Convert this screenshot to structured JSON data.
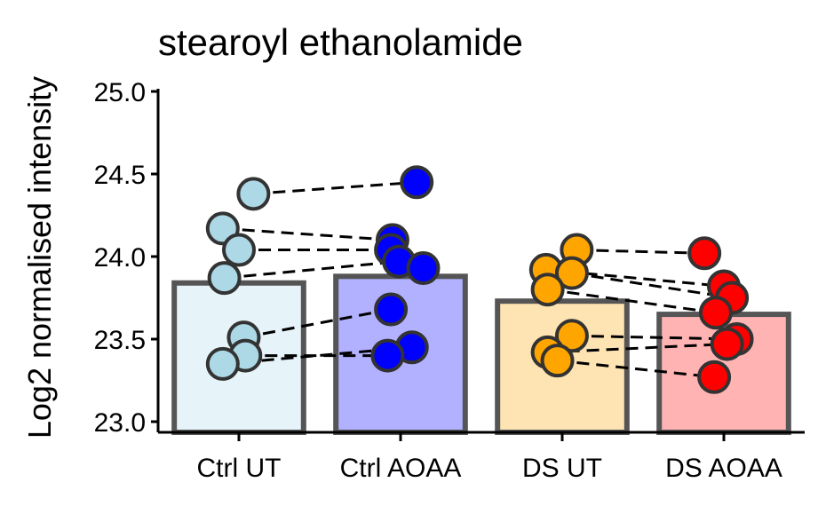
{
  "chart_data": {
    "type": "bar",
    "title": "stearoyl ethanolamide",
    "xlabel": "",
    "ylabel": "Log2 normalised intensity",
    "ylim": [
      23.0,
      25.0
    ],
    "yticks": [
      "23.0",
      "23.5",
      "24.0",
      "24.5",
      "25.0"
    ],
    "grid": false,
    "categories": [
      "Ctrl UT",
      "Ctrl AOAA",
      "DS UT",
      "DS AOAA"
    ],
    "values": [
      23.84,
      23.88,
      23.73,
      23.65
    ],
    "bar_colors": [
      "#e6f3f9",
      "#b1b1ff",
      "#fee4b3",
      "#ffb3b3"
    ],
    "point_colors": [
      "#add8e6",
      "#0000ff",
      "#ffa500",
      "#ff0000"
    ],
    "points": [
      [
        24.38,
        24.17,
        24.04,
        23.87,
        23.51,
        23.4,
        23.35
      ],
      [
        24.45,
        24.1,
        24.04,
        23.97,
        23.93,
        23.68,
        23.45,
        23.4
      ],
      [
        24.04,
        23.92,
        23.9,
        23.8,
        23.52,
        23.42,
        23.37
      ],
      [
        24.02,
        23.82,
        23.75,
        23.66,
        23.5,
        23.47,
        23.27
      ]
    ],
    "point_offsets": [
      [
        0.09,
        -0.1,
        0.0,
        -0.09,
        0.03,
        0.04,
        -0.1
      ],
      [
        0.1,
        -0.05,
        -0.06,
        -0.01,
        0.14,
        -0.06,
        0.07,
        -0.08
      ],
      [
        0.09,
        -0.1,
        0.06,
        -0.09,
        0.06,
        -0.09,
        -0.03
      ],
      [
        -0.12,
        0.0,
        0.05,
        -0.05,
        0.08,
        0.02,
        -0.06
      ]
    ],
    "pairs": [
      [
        [
          0,
          0
        ],
        [
          1,
          0
        ]
      ],
      [
        [
          0,
          1
        ],
        [
          1,
          1
        ]
      ],
      [
        [
          0,
          2
        ],
        [
          1,
          2
        ]
      ],
      [
        [
          0,
          3
        ],
        [
          1,
          3
        ]
      ],
      [
        [
          0,
          4
        ],
        [
          1,
          5
        ]
      ],
      [
        [
          0,
          5
        ],
        [
          1,
          7
        ]
      ],
      [
        [
          0,
          6
        ],
        [
          1,
          6
        ]
      ],
      [
        [
          2,
          0
        ],
        [
          3,
          0
        ]
      ],
      [
        [
          2,
          1
        ],
        [
          3,
          1
        ]
      ],
      [
        [
          2,
          2
        ],
        [
          3,
          2
        ]
      ],
      [
        [
          2,
          3
        ],
        [
          3,
          3
        ]
      ],
      [
        [
          2,
          4
        ],
        [
          3,
          4
        ]
      ],
      [
        [
          2,
          5
        ],
        [
          3,
          5
        ]
      ],
      [
        [
          2,
          6
        ],
        [
          3,
          6
        ]
      ]
    ]
  }
}
